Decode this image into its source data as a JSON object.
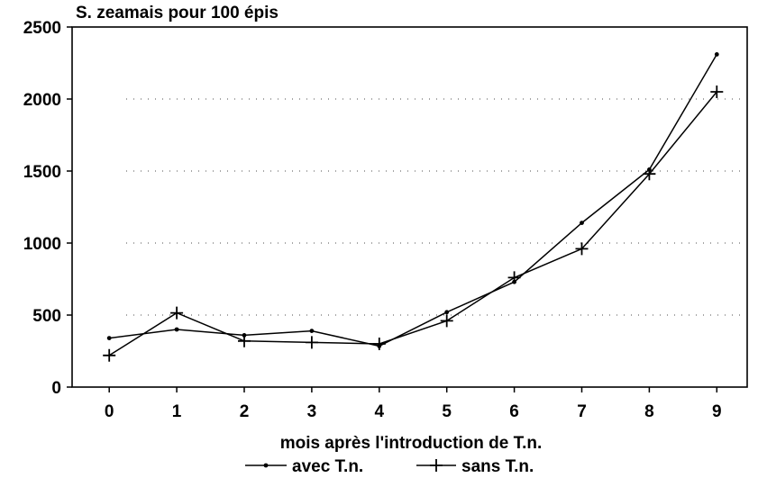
{
  "chart_data": {
    "type": "line",
    "title": "S. zeamais pour 100 épis",
    "xlabel": "mois après l'introduction de T.n.",
    "ylabel": "",
    "x": [
      0,
      1,
      2,
      3,
      4,
      5,
      6,
      7,
      8,
      9
    ],
    "x_ticks": [
      "0",
      "1",
      "2",
      "3",
      "4",
      "5",
      "6",
      "7",
      "8",
      "9"
    ],
    "xlim": [
      -0.55,
      9.45
    ],
    "ylim": [
      0,
      2500
    ],
    "y_ticks": [
      "0",
      "500",
      "1000",
      "1500",
      "2000",
      "2500"
    ],
    "grid": true,
    "legend_position": "bottom",
    "series": [
      {
        "name": "avec T.n.",
        "marker": "dot",
        "color": "#000000",
        "values": [
          340,
          400,
          360,
          390,
          285,
          520,
          730,
          1140,
          1510,
          2310
        ]
      },
      {
        "name": "sans T.n.",
        "marker": "plus",
        "color": "#000000",
        "values": [
          220,
          515,
          320,
          310,
          300,
          460,
          760,
          960,
          1480,
          2050
        ]
      }
    ]
  }
}
